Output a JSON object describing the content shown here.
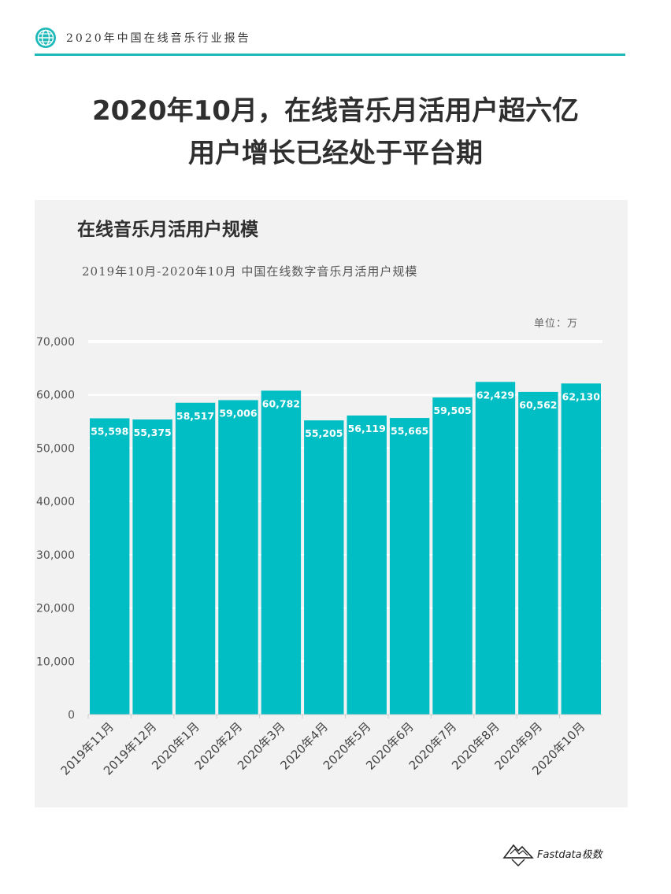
{
  "header": {
    "report_title": "2020年中国在线音乐行业报告",
    "accent_color": "#1fb9b9",
    "icon": "globe-icon"
  },
  "headline": {
    "line1": "2020年10月，在线音乐月活用户超六亿",
    "line2": "用户增长已经处于平台期"
  },
  "chart_data": {
    "type": "bar",
    "title": "在线音乐月活用户规模",
    "subtitle": "2019年10月-2020年10月 中国在线数字音乐月活用户规模",
    "unit_label": "单位：万",
    "categories": [
      "2019年11月",
      "2019年12月",
      "2020年1月",
      "2020年2月",
      "2020年3月",
      "2020年4月",
      "2020年5月",
      "2020年6月",
      "2020年7月",
      "2020年8月",
      "2020年9月",
      "2020年10月"
    ],
    "values": [
      55598,
      55375,
      58517,
      59006,
      60782,
      55205,
      56119,
      55665,
      59505,
      62429,
      60562,
      62130
    ],
    "value_labels": [
      "55,598",
      "55,375",
      "58,517",
      "59,006",
      "60,782",
      "55,205",
      "56,119",
      "55,665",
      "59,505",
      "62,429",
      "60,562",
      "62,130"
    ],
    "ylim": [
      0,
      70000
    ],
    "yticks": [
      0,
      10000,
      20000,
      30000,
      40000,
      50000,
      60000,
      70000
    ],
    "ytick_labels": [
      "0",
      "10,000",
      "20,000",
      "30,000",
      "40,000",
      "50,000",
      "60,000",
      "70,000"
    ],
    "bar_color": "#00bec3",
    "grid": true,
    "grid_color": "#ffffff",
    "legend": "none"
  },
  "footer": {
    "brand": "Fastdata极数",
    "icon": "mountain-logo-icon"
  }
}
